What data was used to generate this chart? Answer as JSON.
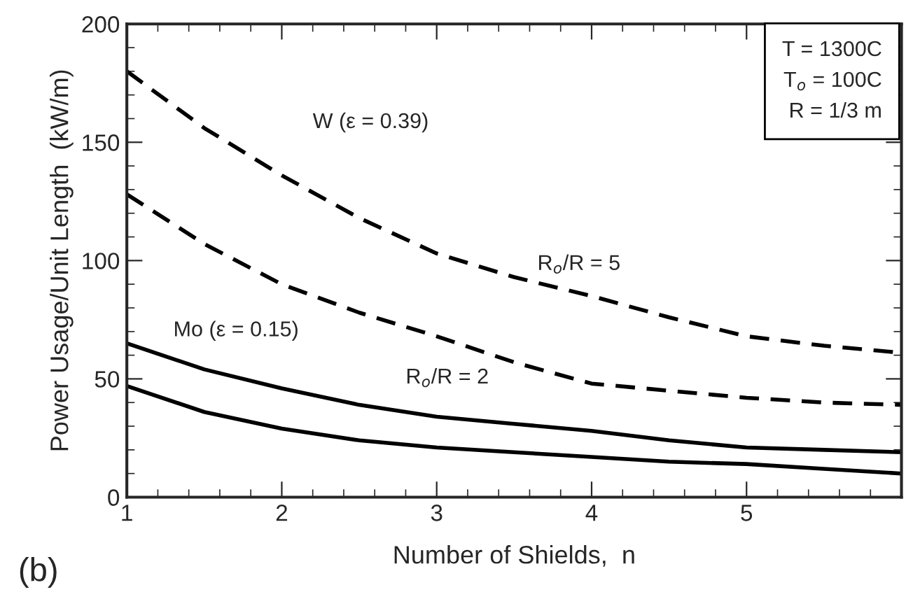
{
  "chart_data": {
    "type": "line",
    "xlabel": "Number of Shields,  n",
    "ylabel": "Power Usage/Unit Length  (kW/m)",
    "x": [
      1,
      1.5,
      2,
      2.5,
      3,
      3.5,
      4,
      4.5,
      5,
      5.5,
      6
    ],
    "series": [
      {
        "color": "#000000",
        "line_style": "dashed",
        "values": [
          180,
          156,
          136,
          118,
          103,
          93,
          85,
          76,
          68,
          64,
          61
        ]
      },
      {
        "color": "#000000",
        "line_style": "dashed",
        "values": [
          128,
          107,
          90,
          78,
          68,
          57,
          48,
          45,
          42,
          40,
          39
        ]
      },
      {
        "color": "#000000",
        "line_style": "solid",
        "values": [
          65,
          54,
          46,
          39,
          34,
          31,
          28,
          24,
          21,
          20,
          19
        ]
      },
      {
        "color": "#000000",
        "line_style": "solid",
        "values": [
          47,
          36,
          29,
          24,
          21,
          19,
          17,
          15,
          14,
          12,
          10
        ]
      }
    ],
    "xlim": [
      1,
      6
    ],
    "xticks": [
      1,
      2,
      3,
      4,
      5
    ],
    "ylim": [
      0,
      200
    ],
    "yticks": [
      0,
      50,
      100,
      150,
      200
    ],
    "grid": false,
    "legend": false,
    "marker": "none",
    "annotations": [
      "W (ε = 0.39)",
      "Mo (ε = 0.15)",
      "R$_{o}$/R = 2",
      "R$_{o}$/R = 5",
      "T = 1300C",
      "T$_{o}$ = 100C",
      "R = 1/3 m",
      "(b)"
    ]
  }
}
